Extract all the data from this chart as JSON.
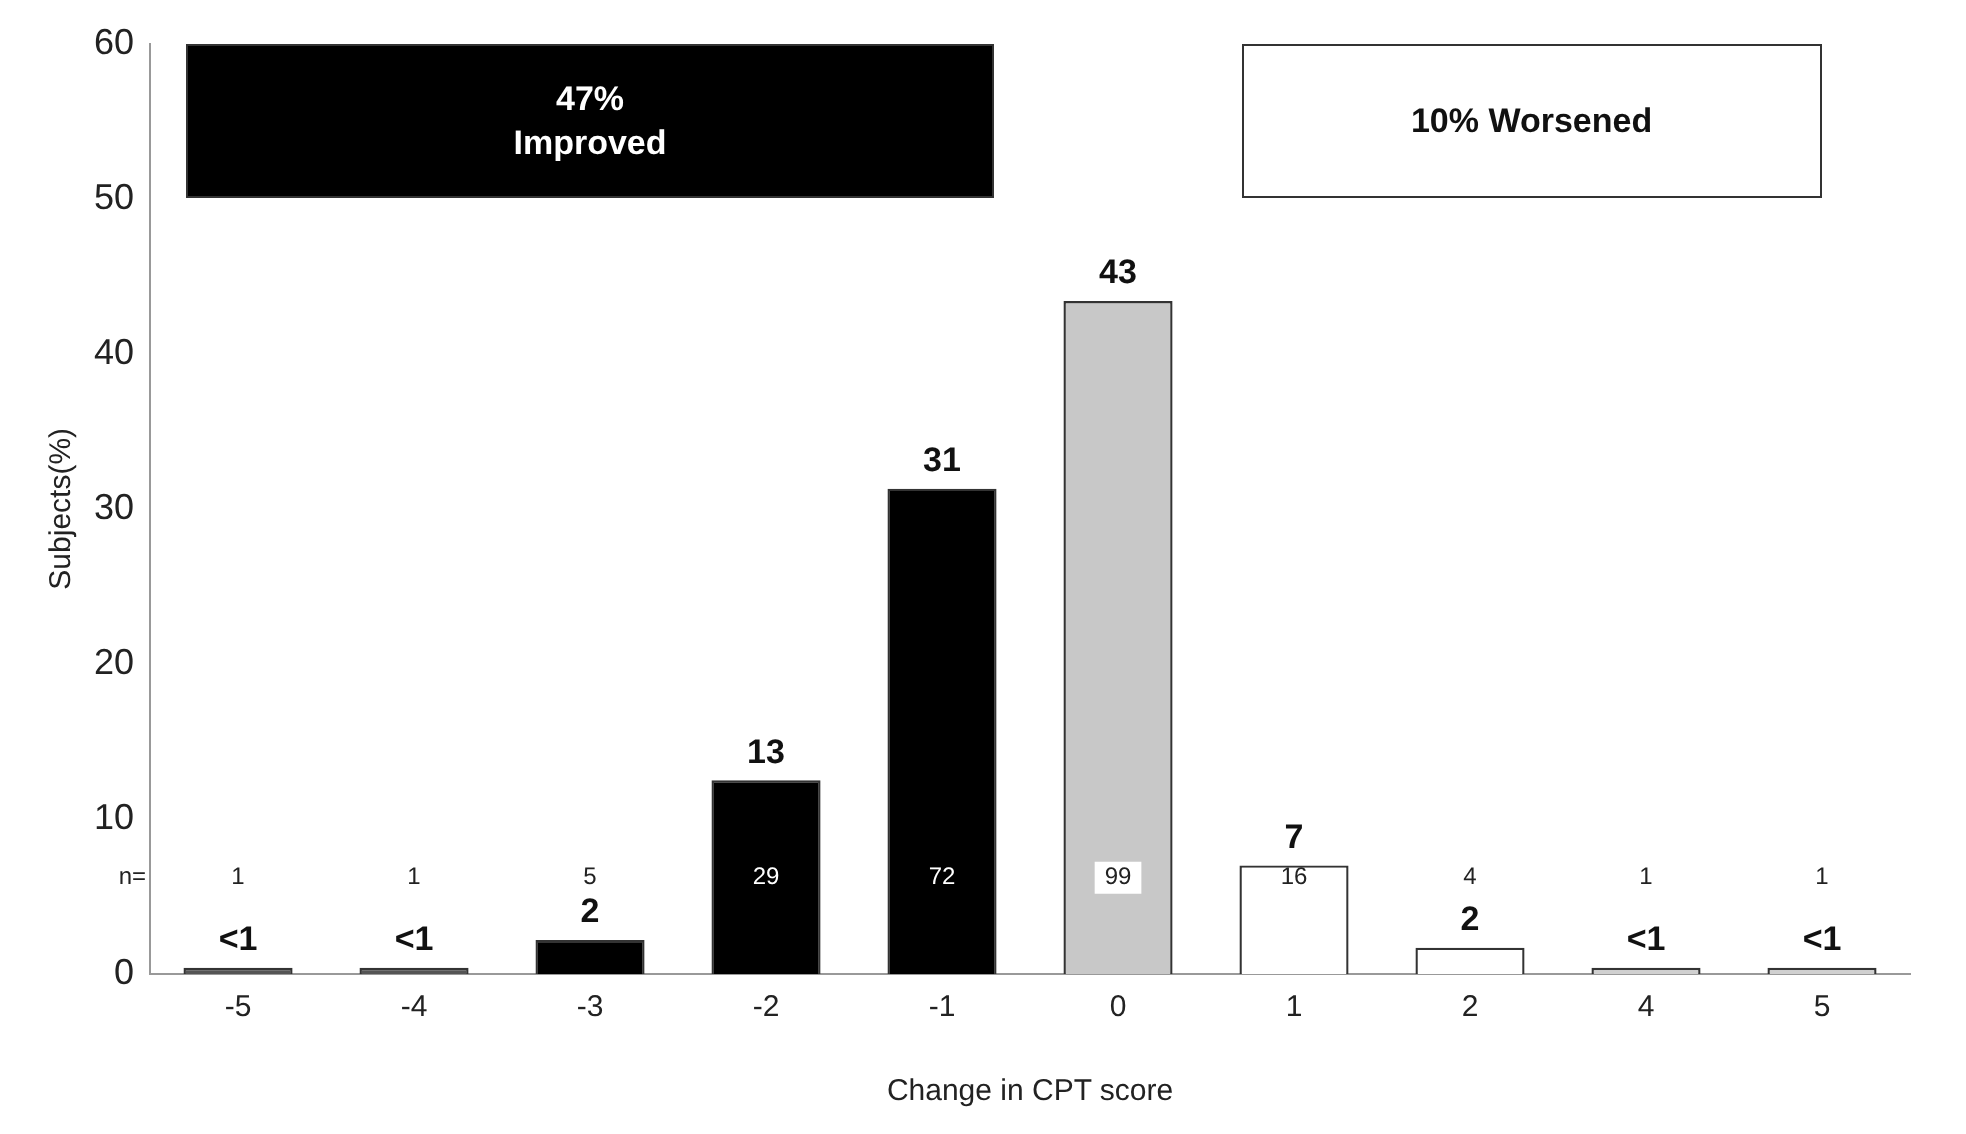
{
  "chart_data": {
    "type": "bar",
    "xlabel": "Change in CPT score",
    "ylabel": "Subjects(%)",
    "categories": [
      "-5",
      "-4",
      "-3",
      "-2",
      "-1",
      "0",
      "1",
      "2",
      "4",
      "5"
    ],
    "values": [
      0.4,
      0.4,
      2.2,
      12.5,
      31.3,
      43.4,
      7,
      1.7,
      0.4,
      0.4
    ],
    "colors": [
      "#555555",
      "#555555",
      "#000000",
      "#000000",
      "#000000",
      "#c8c8c8",
      "#ffffff",
      "#ffffff",
      "#d0d0d0",
      "#d0d0d0"
    ],
    "value_labels": [
      "<1",
      "<1",
      "2",
      "13",
      "31",
      "43",
      "7",
      "2",
      "<1",
      "<1"
    ],
    "ylim": [
      0,
      60
    ],
    "yticks": [
      0,
      10,
      20,
      30,
      40,
      50,
      60
    ],
    "grid": false,
    "legend": false,
    "annotations": [
      "47%\nImproved",
      "10% Worsened",
      "n=",
      "1",
      "1",
      "5",
      "29",
      "72",
      "99",
      "16",
      "4",
      "1",
      "1"
    ]
  }
}
